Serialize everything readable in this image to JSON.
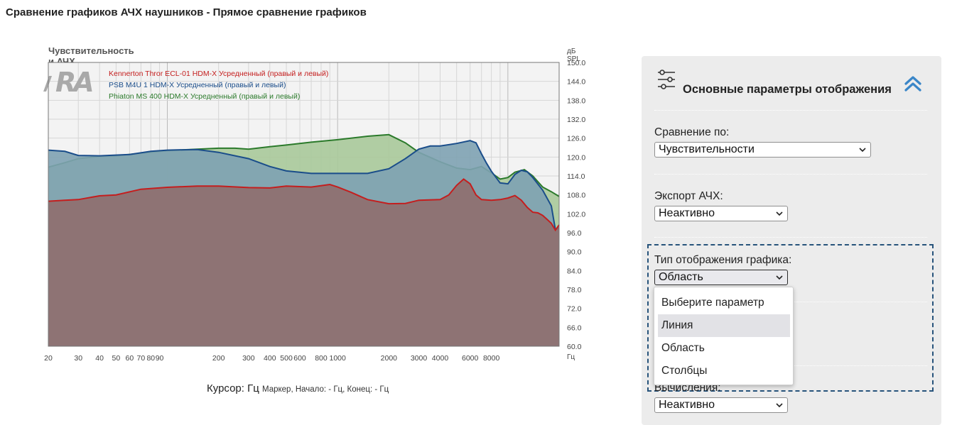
{
  "page": {
    "title": "Сравнение графиков АЧХ наушников - Прямое сравнение графиков"
  },
  "chart_data": {
    "type": "area",
    "title": "Чувствительность и АЧХ",
    "ylabel": "дБ SPL",
    "xlabel": "Гц",
    "xscale": "log",
    "xlim": [
      20,
      20000
    ],
    "ylim": [
      60,
      150
    ],
    "yticks": [
      "150.0",
      "144.0",
      "138.0",
      "132.0",
      "126.0",
      "120.0",
      "114.0",
      "108.0",
      "102.0",
      "96.0",
      "90.0",
      "84.0",
      "78.0",
      "72.0",
      "66.0",
      "60.0"
    ],
    "xticks": [
      {
        "v": 20,
        "label": "20"
      },
      {
        "v": 30,
        "label": "30"
      },
      {
        "v": 40,
        "label": "40"
      },
      {
        "v": 50,
        "label": "50"
      },
      {
        "v": 60,
        "label": "60"
      },
      {
        "v": 70,
        "label": "70"
      },
      {
        "v": 80,
        "label": "80"
      },
      {
        "v": 90,
        "label": "90"
      },
      {
        "v": 200,
        "label": "200"
      },
      {
        "v": 300,
        "label": "300"
      },
      {
        "v": 400,
        "label": "400"
      },
      {
        "v": 500,
        "label": "500"
      },
      {
        "v": 600,
        "label": "600"
      },
      {
        "v": 800,
        "label": "800"
      },
      {
        "v": 1000,
        "label": "1000"
      },
      {
        "v": 2000,
        "label": "2000"
      },
      {
        "v": 3000,
        "label": "3000"
      },
      {
        "v": 4000,
        "label": "4000"
      },
      {
        "v": 6000,
        "label": "6000"
      },
      {
        "v": 8000,
        "label": "8000"
      }
    ],
    "legend_position": "top-left",
    "logo": "RA",
    "series": [
      {
        "name": "Phiaton MS 400 HDM-X Усредненный (правый и левый)",
        "line_color": "#2b7a2b",
        "fill_color": "#a8c99a",
        "points": [
          [
            20,
            116.8
          ],
          [
            25,
            118.2
          ],
          [
            30,
            119.5
          ],
          [
            40,
            120.2
          ],
          [
            50,
            120.4
          ],
          [
            70,
            121.2
          ],
          [
            100,
            122
          ],
          [
            150,
            122.5
          ],
          [
            200,
            122.8
          ],
          [
            250,
            122.8
          ],
          [
            300,
            122.5
          ],
          [
            400,
            123.3
          ],
          [
            500,
            123.8
          ],
          [
            700,
            124.7
          ],
          [
            1000,
            125.5
          ],
          [
            1500,
            126.6
          ],
          [
            2000,
            127.1
          ],
          [
            2500,
            124.5
          ],
          [
            3000,
            121.5
          ],
          [
            4000,
            118.5
          ],
          [
            5000,
            116.5
          ],
          [
            6000,
            116
          ],
          [
            7000,
            117
          ],
          [
            8000,
            115
          ],
          [
            9000,
            113
          ],
          [
            10000,
            113.5
          ],
          [
            11000,
            115.2
          ],
          [
            12500,
            116
          ],
          [
            14000,
            114
          ],
          [
            16000,
            110.5
          ],
          [
            18000,
            109
          ],
          [
            20000,
            107.5
          ]
        ]
      },
      {
        "name": "PSB M4U 1 HDM-X Усредненный (правый и левый)",
        "line_color": "#1a4d8a",
        "fill_color": "#7ea2b3",
        "points": [
          [
            20,
            122.2
          ],
          [
            25,
            121.8
          ],
          [
            30,
            120.5
          ],
          [
            40,
            120.4
          ],
          [
            60,
            120.8
          ],
          [
            80,
            121.8
          ],
          [
            100,
            122.2
          ],
          [
            150,
            122.4
          ],
          [
            200,
            121.5
          ],
          [
            300,
            119.5
          ],
          [
            400,
            117
          ],
          [
            500,
            115.6
          ],
          [
            700,
            114.8
          ],
          [
            1000,
            114.8
          ],
          [
            1500,
            114.8
          ],
          [
            2000,
            116.3
          ],
          [
            2500,
            119.5
          ],
          [
            3000,
            122.5
          ],
          [
            3500,
            123.5
          ],
          [
            4000,
            123.5
          ],
          [
            5000,
            124.3
          ],
          [
            6000,
            125.2
          ],
          [
            6500,
            124.5
          ],
          [
            7000,
            121
          ],
          [
            7500,
            118
          ],
          [
            8000,
            115.5
          ],
          [
            9000,
            111.8
          ],
          [
            10000,
            111.5
          ],
          [
            11000,
            114.5
          ],
          [
            12000,
            115.8
          ],
          [
            13000,
            115.3
          ],
          [
            14000,
            113.5
          ],
          [
            16000,
            109.5
          ],
          [
            18000,
            104.5
          ],
          [
            19000,
            97
          ],
          [
            20000,
            97.5
          ]
        ]
      },
      {
        "name": "Kennerton Thror ECL-01 HDM-X Усредненный (правый и левый)",
        "line_color": "#c41e1e",
        "fill_color": "#8f6e6e",
        "points": [
          [
            20,
            106
          ],
          [
            25,
            106.3
          ],
          [
            30,
            106.5
          ],
          [
            40,
            107.7
          ],
          [
            50,
            108
          ],
          [
            70,
            109.8
          ],
          [
            100,
            110.4
          ],
          [
            150,
            110.8
          ],
          [
            200,
            110.8
          ],
          [
            300,
            110.3
          ],
          [
            400,
            110.2
          ],
          [
            500,
            110.8
          ],
          [
            700,
            110.5
          ],
          [
            900,
            111.3
          ],
          [
            1000,
            110.5
          ],
          [
            1200,
            108.8
          ],
          [
            1500,
            106.5
          ],
          [
            2000,
            105.2
          ],
          [
            2500,
            105.3
          ],
          [
            3000,
            106.3
          ],
          [
            4000,
            106.5
          ],
          [
            4500,
            108
          ],
          [
            5000,
            111
          ],
          [
            5500,
            113
          ],
          [
            6000,
            111.5
          ],
          [
            6500,
            108
          ],
          [
            7000,
            106.5
          ],
          [
            8000,
            106.3
          ],
          [
            9000,
            106.5
          ],
          [
            10000,
            107
          ],
          [
            11000,
            107.8
          ],
          [
            12000,
            106.3
          ],
          [
            13000,
            104
          ],
          [
            14000,
            102.5
          ],
          [
            15000,
            102.3
          ],
          [
            16000,
            101.5
          ],
          [
            17000,
            100.2
          ],
          [
            18000,
            99
          ],
          [
            19000,
            96.8
          ],
          [
            20000,
            98.5
          ]
        ]
      }
    ]
  },
  "cursor": {
    "label": "Курсор:",
    "unit": "Гц",
    "marker_text": "Маркер, Начало: - Гц, Конец: - Гц"
  },
  "settings": {
    "title": "Основные параметры отображения",
    "compare_by": {
      "label": "Сравнение по:",
      "value": "Чувствительности"
    },
    "export": {
      "label": "Экспорт АЧХ:",
      "value": "Неактивно"
    },
    "graph_type": {
      "label": "Тип отображения графика:",
      "value": "Область",
      "options": [
        "Выберите параметр",
        "Линия",
        "Область",
        "Столбцы"
      ],
      "highlighted": "Линия"
    },
    "calc": {
      "label": "Вычисления:",
      "value": "Неактивно"
    }
  }
}
